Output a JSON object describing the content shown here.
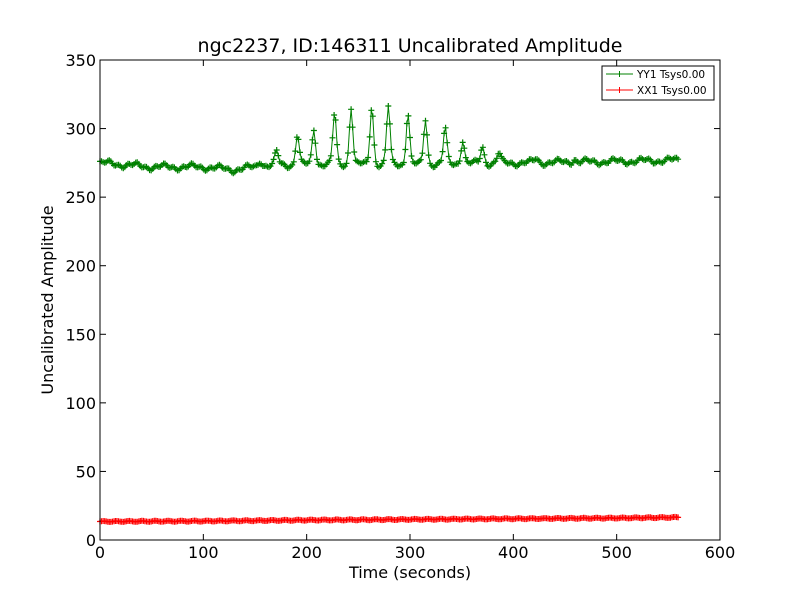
{
  "chart_data": {
    "type": "line",
    "title": "ngc2237, ID:146311 Uncalibrated Amplitude",
    "xlabel": "Time (seconds)",
    "ylabel": "Uncalibrated Amplitude",
    "xlim": [
      0,
      600
    ],
    "ylim": [
      0,
      350
    ],
    "xticks": [
      "0",
      "100",
      "200",
      "300",
      "400",
      "500",
      "600"
    ],
    "yticks": [
      "0",
      "50",
      "100",
      "150",
      "200",
      "250",
      "300",
      "350"
    ],
    "grid": false,
    "legend_position": "top-right",
    "series": [
      {
        "name": "YY1 Tsys0.00",
        "color": "#008000",
        "marker": "plus",
        "x_range": [
          0,
          560
        ],
        "baseline": [
          [
            0,
            275
          ],
          [
            50,
            272
          ],
          [
            100,
            272
          ],
          [
            130,
            270
          ],
          [
            160,
            273
          ],
          [
            200,
            274
          ],
          [
            300,
            274
          ],
          [
            400,
            275
          ],
          [
            500,
            276
          ],
          [
            560,
            277
          ]
        ],
        "peaks": [
          [
            155,
            277
          ],
          [
            171,
            283
          ],
          [
            191,
            296
          ],
          [
            207,
            300
          ],
          [
            227,
            311
          ],
          [
            243,
            316
          ],
          [
            263,
            317
          ],
          [
            279,
            316
          ],
          [
            298,
            312
          ],
          [
            315,
            307
          ],
          [
            334,
            300
          ],
          [
            351,
            292
          ],
          [
            370,
            287
          ],
          [
            386,
            282
          ],
          [
            422,
            278
          ],
          [
            459,
            278
          ]
        ]
      },
      {
        "name": "XX1 Tsys0.00",
        "color": "#ff0000",
        "marker": "plus",
        "x_range": [
          0,
          560
        ],
        "points": [
          [
            0,
            13.5
          ],
          [
            100,
            13.8
          ],
          [
            135,
            14.0
          ],
          [
            200,
            14.5
          ],
          [
            300,
            15.0
          ],
          [
            400,
            15.5
          ],
          [
            500,
            16.0
          ],
          [
            560,
            16.5
          ]
        ]
      }
    ]
  }
}
